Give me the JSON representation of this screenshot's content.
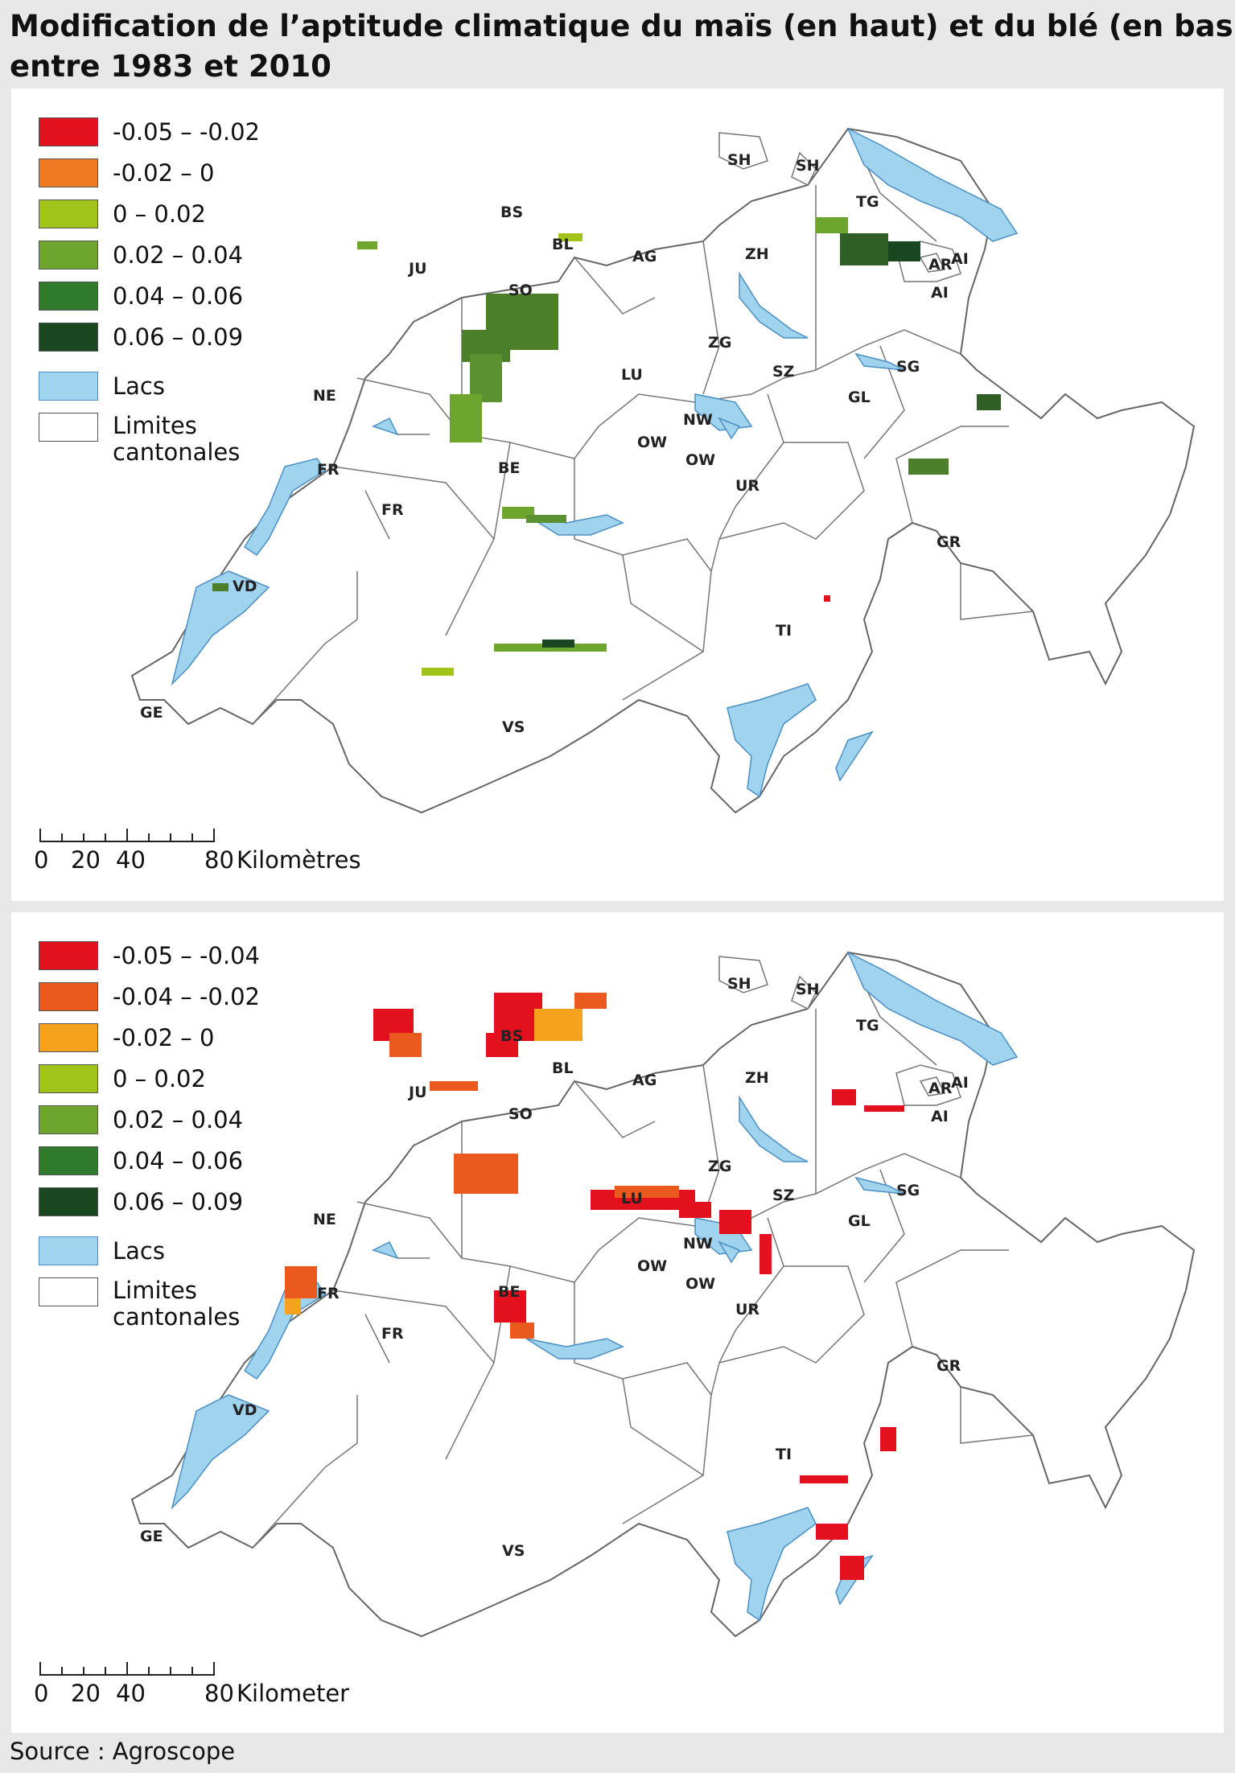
{
  "title": {
    "line1": "Modification de l’aptitude climatique du maïs (en haut) et du blé (en bas)",
    "line2": "entre 1983 et 2010"
  },
  "source": "Source : Agroscope",
  "top_map": {
    "legend": [
      {
        "label": "-0.05 – -0.02",
        "color": "#e3101e"
      },
      {
        "label": "-0.02 – 0",
        "color": "#ee7b23"
      },
      {
        "label": "0 – 0.02",
        "color": "#a2c41a"
      },
      {
        "label": "0.02 – 0.04",
        "color": "#6ea52f"
      },
      {
        "label": "0.04 – 0.06",
        "color": "#2f7a2c"
      },
      {
        "label": "0.06 – 0.09",
        "color": "#1a4720"
      }
    ],
    "lakes_label": "Lacs",
    "limits_label_1": "Limites",
    "limits_label_2": "cantonales",
    "scale": {
      "ticks": [
        "0",
        "20",
        "40",
        "80"
      ],
      "unit": "Kilomètres"
    }
  },
  "bottom_map": {
    "legend": [
      {
        "label": "-0.05 – -0.04",
        "color": "#e3101e"
      },
      {
        "label": "-0.04 – -0.02",
        "color": "#ea5a1e"
      },
      {
        "label": "-0.02 – 0",
        "color": "#f5a31e"
      },
      {
        "label": "0 – 0.02",
        "color": "#a2c41a"
      },
      {
        "label": "0.02 – 0.04",
        "color": "#6ea52f"
      },
      {
        "label": "0.04 – 0.06",
        "color": "#2f7a2c"
      },
      {
        "label": "0.06 – 0.09",
        "color": "#1a4720"
      }
    ],
    "lakes_label": "Lacs",
    "limits_label_1": "Limites",
    "limits_label_2": "cantonales",
    "scale": {
      "ticks": [
        "0",
        "20",
        "40",
        "80"
      ],
      "unit": "Kilometer"
    }
  },
  "cantons": [
    "SH",
    "SH",
    "TG",
    "BS",
    "BL",
    "AG",
    "ZH",
    "AR",
    "AI",
    "AI",
    "JU",
    "SO",
    "ZG",
    "SZ",
    "SG",
    "LU",
    "NE",
    "NW",
    "GL",
    "OW",
    "OW",
    "FR",
    "FR",
    "BE",
    "UR",
    "GR",
    "VD",
    "TI",
    "GE",
    "VS"
  ],
  "colors": {
    "lake": "#9fd3ee",
    "lake_stroke": "#4a8fc4",
    "border": "#666666",
    "background": "#e8e8e8",
    "panel": "#ffffff"
  }
}
